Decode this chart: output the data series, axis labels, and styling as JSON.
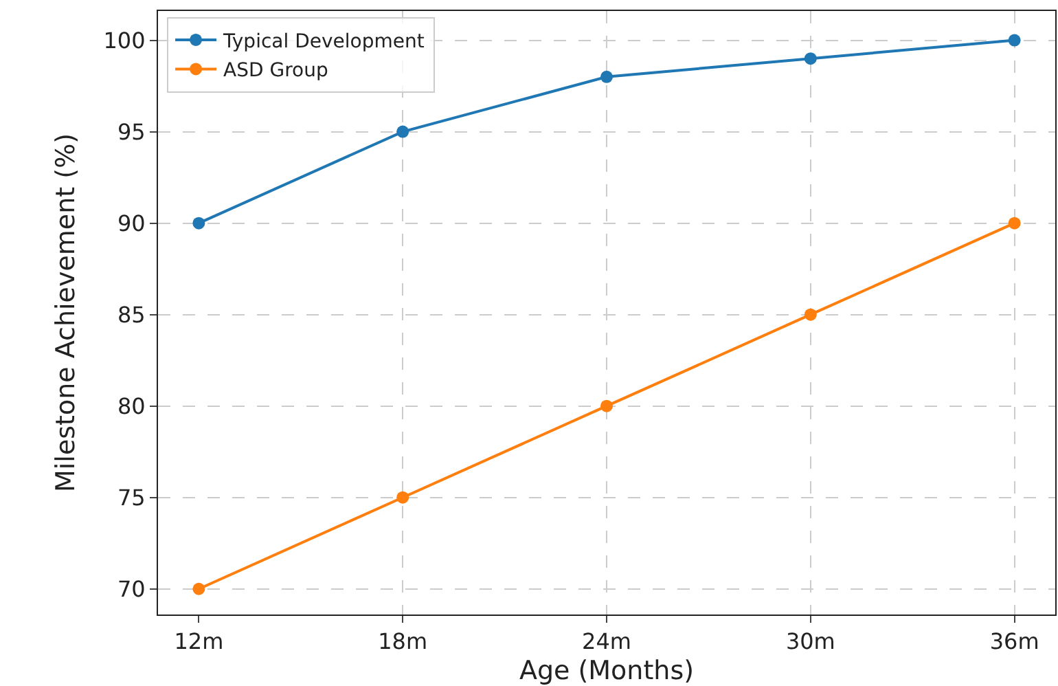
{
  "chart_data": {
    "type": "line",
    "xlabel": "Age (Months)",
    "ylabel": "Milestone Achievement (%)",
    "categories": [
      "12m",
      "18m",
      "24m",
      "30m",
      "36m"
    ],
    "series": [
      {
        "name": "Typical Development",
        "color": "#1f77b4",
        "values": [
          90,
          95,
          98,
          99,
          100
        ]
      },
      {
        "name": "ASD Group",
        "color": "#ff7f0e",
        "values": [
          70,
          75,
          80,
          85,
          90
        ]
      }
    ],
    "ylim": [
      68.6,
      101.6
    ],
    "yticks": [
      70,
      75,
      80,
      85,
      90,
      95,
      100
    ],
    "grid": true,
    "legend": "top left",
    "marker": "circle",
    "line_style": "solid"
  }
}
